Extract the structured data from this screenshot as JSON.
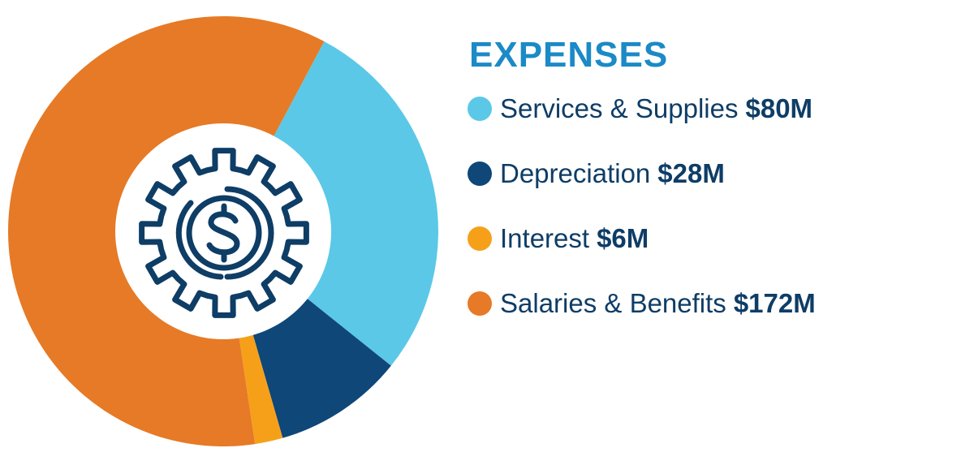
{
  "chart_data": {
    "type": "pie",
    "title": "EXPENSES",
    "series": [
      {
        "name": "Services & Supplies",
        "label": "$80M",
        "value": 80,
        "color": "#5bc8e8"
      },
      {
        "name": "Depreciation",
        "label": "$28M",
        "value": 28,
        "color": "#0e4778"
      },
      {
        "name": "Interest",
        "label": "$6M",
        "value": 6,
        "color": "#f6a01a"
      },
      {
        "name": "Salaries & Benefits",
        "label": "$172M",
        "value": 172,
        "color": "#e67a26"
      }
    ],
    "legend": "right",
    "start_angle_deg": -62,
    "donut": true
  },
  "colors": {
    "title": "#1b8ac6",
    "text": "#0e3d66",
    "icon": "#0e3d66",
    "hole": "#ffffff"
  },
  "center_icon": "gear-dollar-icon"
}
